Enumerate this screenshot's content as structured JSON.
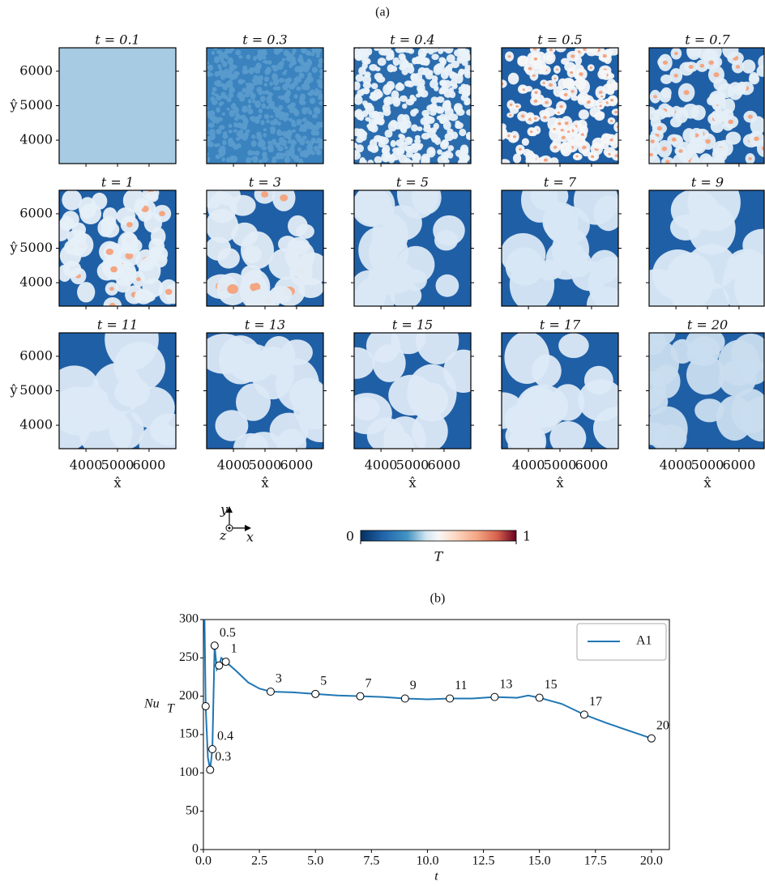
{
  "panel_a": {
    "label": "(a)",
    "panels": [
      {
        "title": "t = 0.1"
      },
      {
        "title": "t = 0.3"
      },
      {
        "title": "t = 0.4"
      },
      {
        "title": "t = 0.5"
      },
      {
        "title": "t = 0.7"
      },
      {
        "title": "t = 1"
      },
      {
        "title": "t = 3"
      },
      {
        "title": "t = 5"
      },
      {
        "title": "t = 7"
      },
      {
        "title": "t = 9"
      },
      {
        "title": "t = 11"
      },
      {
        "title": "t = 13"
      },
      {
        "title": "t = 15"
      },
      {
        "title": "t = 17"
      },
      {
        "title": "t = 20"
      }
    ],
    "xlim": [
      3150,
      6850
    ],
    "ylim": [
      3320,
      6680
    ],
    "xticks": [
      4000,
      5000,
      6000
    ],
    "yticks": [
      4000,
      5000,
      6000
    ],
    "xlabel": "x̂",
    "ylabel": "ŷ",
    "axes_icon": {
      "x": "x",
      "y": "y",
      "z": "z"
    },
    "colorbar": {
      "lim": [
        0,
        1
      ],
      "ticks": [
        0,
        1
      ],
      "label": "T"
    }
  },
  "chart_data": {
    "type": "line",
    "title": "(b)",
    "xlabel": "t",
    "ylabel": "Nu",
    "ylabel_sub": "T",
    "x": [
      0.05,
      0.1,
      0.2,
      0.3,
      0.4,
      0.5,
      0.6,
      0.7,
      0.8,
      1,
      1.5,
      2,
      2.5,
      3,
      4,
      5,
      6,
      7,
      8,
      9,
      10,
      11,
      12,
      13,
      14,
      14.5,
      15,
      16,
      17,
      18,
      19,
      20
    ],
    "series": [
      {
        "name": "A1",
        "color": "#1f77b4",
        "values": [
          300,
          187,
          120,
          104,
          131,
          266,
          235,
          240,
          250,
          245,
          232,
          218,
          210,
          206,
          205,
          203,
          201,
          200,
          199,
          197,
          196,
          197,
          197,
          199,
          198,
          201,
          198,
          190,
          176,
          165,
          155,
          145
        ]
      }
    ],
    "markers": {
      "x": [
        0.1,
        0.3,
        0.4,
        0.5,
        0.7,
        1,
        3,
        5,
        7,
        9,
        11,
        13,
        15,
        17,
        20
      ],
      "values": [
        187,
        104,
        131,
        266,
        240,
        245,
        206,
        203,
        200,
        197,
        197,
        199,
        198,
        176,
        145
      ],
      "labels": [
        null,
        "0.3",
        "0.4",
        "0.5",
        null,
        "1",
        "3",
        "5",
        "7",
        "9",
        "11",
        "13",
        "15",
        "17",
        "20"
      ]
    },
    "xlim": [
      0,
      20.8
    ],
    "ylim": [
      0,
      300
    ],
    "xticks": [
      {
        "value": 0,
        "label": "0.0"
      },
      {
        "value": 2.5,
        "label": "2.5"
      },
      {
        "value": 5,
        "label": "5.0"
      },
      {
        "value": 7.5,
        "label": "7.5"
      },
      {
        "value": 10,
        "label": "10.0"
      },
      {
        "value": 12.5,
        "label": "12.5"
      },
      {
        "value": 15,
        "label": "15.0"
      },
      {
        "value": 17.5,
        "label": "17.5"
      },
      {
        "value": 20,
        "label": "20.0"
      }
    ],
    "yticks": [
      0,
      50,
      100,
      150,
      200,
      250,
      300
    ],
    "legend": "upper right"
  }
}
